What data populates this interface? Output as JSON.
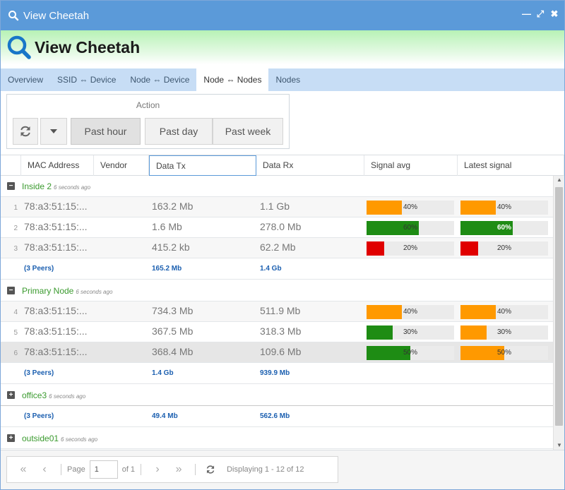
{
  "window": {
    "title": "View Cheetah"
  },
  "header": {
    "title": "View Cheetah"
  },
  "tabs": [
    {
      "label": "Overview"
    },
    {
      "label": "SSID ⇔ Device"
    },
    {
      "label": "Node ⇔ Device"
    },
    {
      "label": "Node ⇔ Nodes",
      "active": true
    },
    {
      "label": "Nodes"
    }
  ],
  "action": {
    "label": "Action",
    "buttons": [
      "Past hour",
      "Past day",
      "Past week"
    ]
  },
  "columns": [
    "MAC Address",
    "Vendor",
    "Data Tx",
    "Data Rx",
    "Signal avg",
    "Latest signal"
  ],
  "groups": [
    {
      "name": "Inside 2",
      "time": "6 seconds ago",
      "expanded": true,
      "rows": [
        {
          "n": "1",
          "mac": "78:a3:51:15:...",
          "tx": "163.2 Mb",
          "rx": "1.1 Gb",
          "sig_avg": 40,
          "sig_avg_color": "#ff9900",
          "sig_latest": 40,
          "sig_latest_color": "#ff9900",
          "sig_avg_label": "40%",
          "sig_latest_label": "40%"
        },
        {
          "n": "2",
          "mac": "78:a3:51:15:...",
          "tx": "1.6 Mb",
          "rx": "278.0 Mb",
          "sig_avg": 60,
          "sig_avg_color": "#1e8c14",
          "sig_latest": 60,
          "sig_latest_color": "#1e8c14",
          "sig_avg_label": "60%",
          "sig_latest_label": "60%"
        },
        {
          "n": "3",
          "mac": "78:a3:51:15:...",
          "tx": "415.2 kb",
          "rx": "62.2 Mb",
          "sig_avg": 20,
          "sig_avg_color": "#e00000",
          "sig_latest": 20,
          "sig_latest_color": "#e00000",
          "sig_avg_label": "20%",
          "sig_latest_label": "20%"
        }
      ],
      "summary": {
        "peers": "(3 Peers)",
        "tx": "165.2 Mb",
        "rx": "1.4 Gb"
      }
    },
    {
      "name": "Primary Node",
      "time": "6 seconds ago",
      "expanded": true,
      "rows": [
        {
          "n": "4",
          "mac": "78:a3:51:15:...",
          "tx": "734.3 Mb",
          "rx": "511.9 Mb",
          "sig_avg": 40,
          "sig_avg_color": "#ff9900",
          "sig_latest": 40,
          "sig_latest_color": "#ff9900",
          "sig_avg_label": "40%",
          "sig_latest_label": "40%"
        },
        {
          "n": "5",
          "mac": "78:a3:51:15:...",
          "tx": "367.5 Mb",
          "rx": "318.3 Mb",
          "sig_avg": 30,
          "sig_avg_color": "#1e8c14",
          "sig_latest": 30,
          "sig_latest_color": "#ff9900",
          "sig_avg_label": "30%",
          "sig_latest_label": "30%"
        },
        {
          "n": "6",
          "mac": "78:a3:51:15:...",
          "tx": "368.4 Mb",
          "rx": "109.6 Mb",
          "sig_avg": 50,
          "sig_avg_color": "#1e8c14",
          "sig_latest": 50,
          "sig_latest_color": "#ff9900",
          "sig_avg_label": "50%",
          "sig_latest_label": "50%"
        }
      ],
      "summary": {
        "peers": "(3 Peers)",
        "tx": "1.4 Gb",
        "rx": "939.9 Mb"
      }
    },
    {
      "name": "office3",
      "time": "6 seconds ago",
      "expanded": false,
      "rows": [],
      "summary": {
        "peers": "(3 Peers)",
        "tx": "49.4 Mb",
        "rx": "562.6 Mb"
      }
    },
    {
      "name": "outside01",
      "time": "6 seconds ago",
      "expanded": false,
      "rows": []
    }
  ],
  "pager": {
    "page_label": "Page",
    "page_value": "1",
    "of_label": "of 1",
    "display_text": "Displaying 1 - 12 of 12"
  },
  "colors": {
    "titlebar": "#5b9ad9",
    "tabs_bg": "#c7ddf5",
    "group_name": "#3a9a2e",
    "summary_text": "#1b5fb0",
    "signal_good": "#1e8c14",
    "signal_mid": "#ff9900",
    "signal_bad": "#e00000"
  },
  "icons": [
    "search-icon",
    "minimize-icon",
    "maximize-icon",
    "close-icon",
    "refresh-icon",
    "caret-down-icon",
    "collapse-icon",
    "expand-icon",
    "first-page-icon",
    "prev-page-icon",
    "next-page-icon",
    "last-page-icon"
  ]
}
